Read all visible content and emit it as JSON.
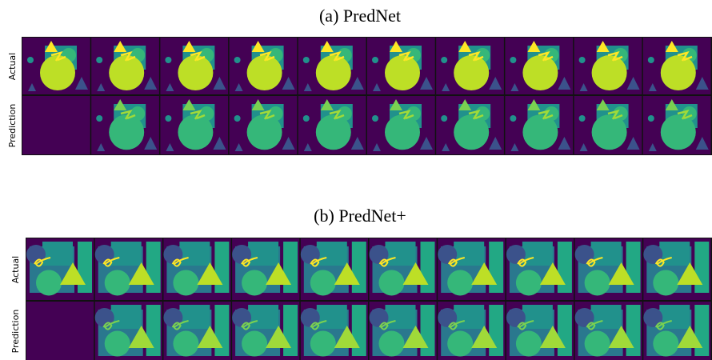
{
  "panels": [
    {
      "title": "(a) PredNet",
      "row_labels": [
        "Actual",
        "Prediction"
      ]
    },
    {
      "title": "(b) PredNet+",
      "row_labels": [
        "Actual",
        "Prediction"
      ]
    }
  ]
}
